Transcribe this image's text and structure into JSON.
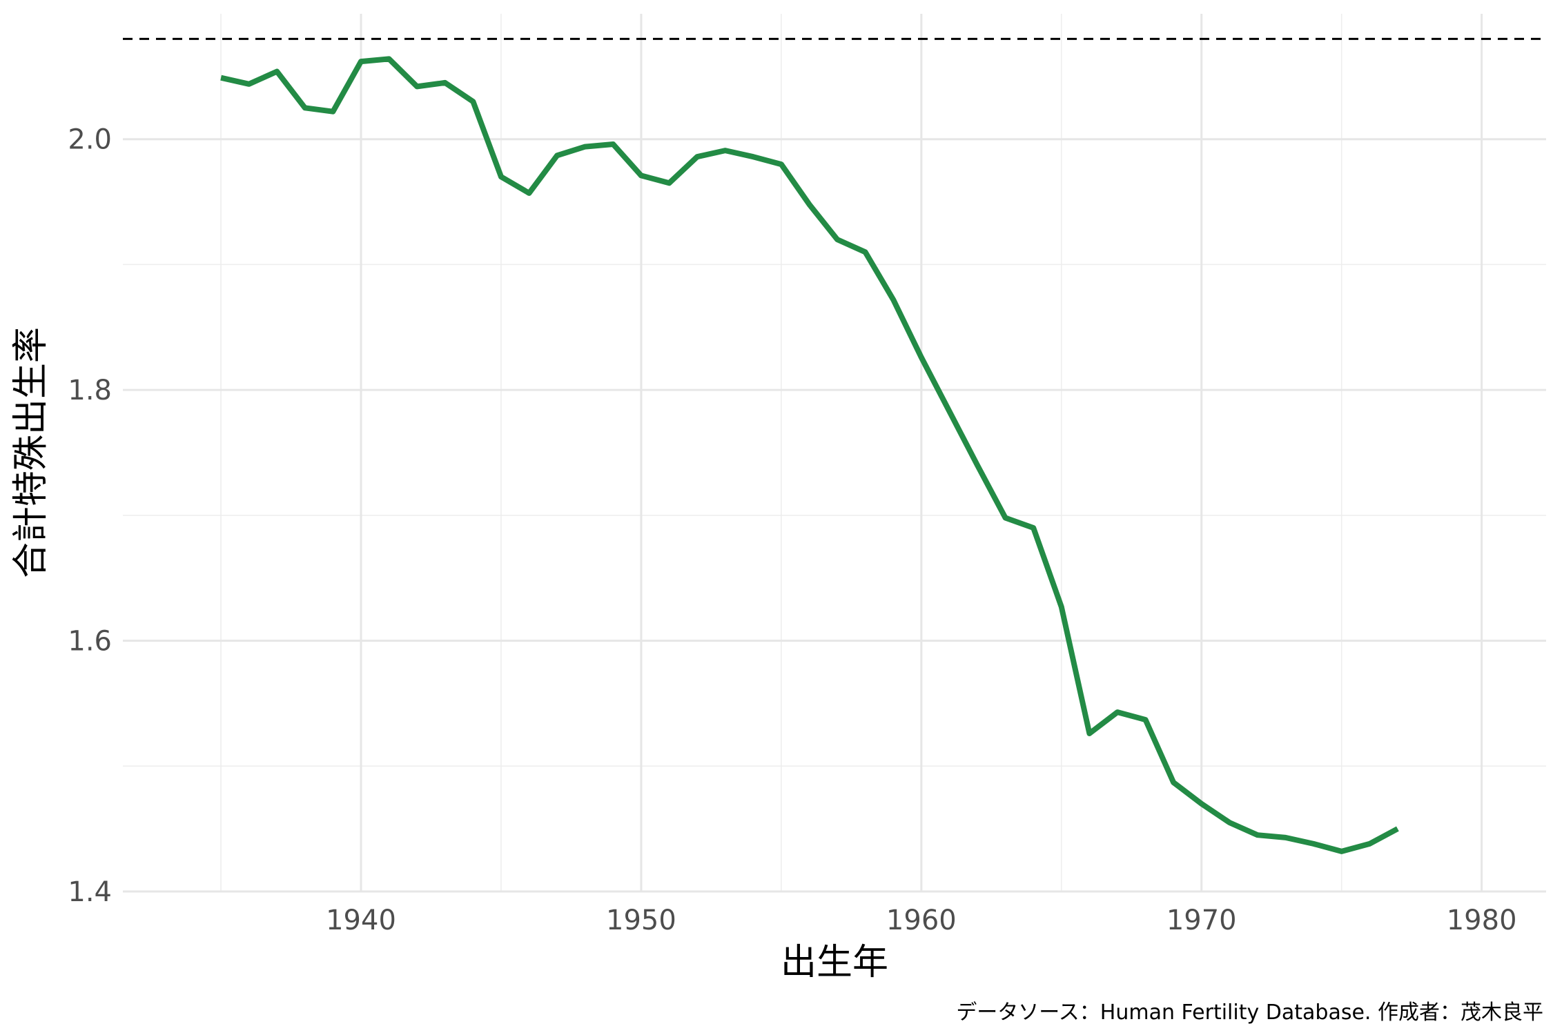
{
  "chart_data": {
    "type": "line",
    "title": "",
    "xlabel": "出生年",
    "ylabel": "合計特殊出生率",
    "caption": "データソース：Human Fertility Database. 作成者：茂木良平",
    "xlim": [
      1931.5,
      1982.3
    ],
    "ylim": [
      1.4,
      2.1
    ],
    "x_ticks": [
      1940,
      1950,
      1960,
      1970,
      1980
    ],
    "x_tick_labels": [
      "1940",
      "1950",
      "1960",
      "1970",
      "1980"
    ],
    "y_ticks": [
      1.4,
      1.6,
      1.8,
      2.0
    ],
    "y_tick_labels": [
      "1.4",
      "1.6",
      "1.8",
      "2.0"
    ],
    "grid": true,
    "reference_line": {
      "y": 2.08,
      "style": "dashed",
      "color": "#000000"
    },
    "series": [
      {
        "color": "#238b45",
        "x": [
          1935,
          1936,
          1937,
          1938,
          1939,
          1940,
          1941,
          1942,
          1943,
          1944,
          1945,
          1946,
          1947,
          1948,
          1949,
          1950,
          1951,
          1952,
          1953,
          1954,
          1955,
          1956,
          1957,
          1958,
          1959,
          1960,
          1961,
          1962,
          1963,
          1964,
          1965,
          1966,
          1967,
          1968,
          1969,
          1970,
          1971,
          1972,
          1973,
          1974,
          1975,
          1976,
          1977
        ],
        "y": [
          2.049,
          2.044,
          2.054,
          2.025,
          2.022,
          2.062,
          2.064,
          2.042,
          2.045,
          2.03,
          1.97,
          1.957,
          1.987,
          1.994,
          1.996,
          1.971,
          1.965,
          1.986,
          1.991,
          1.986,
          1.98,
          1.948,
          1.92,
          1.91,
          1.872,
          1.826,
          1.783,
          1.74,
          1.698,
          1.69,
          1.627,
          1.526,
          1.543,
          1.537,
          1.487,
          1.47,
          1.455,
          1.445,
          1.443,
          1.438,
          1.432,
          1.438,
          1.45
        ]
      }
    ]
  }
}
